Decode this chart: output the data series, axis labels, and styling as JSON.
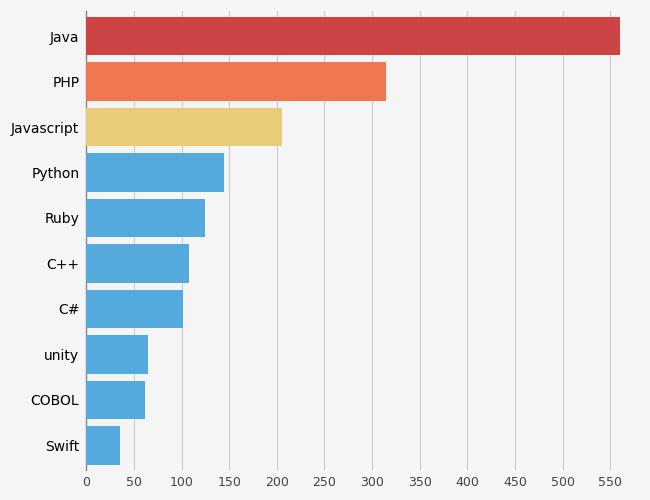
{
  "categories": [
    "Java",
    "PHP",
    "Javascript",
    "Python",
    "Ruby",
    "C++",
    "C#",
    "unity",
    "COBOL",
    "Swift"
  ],
  "values": [
    560,
    315,
    205,
    145,
    125,
    108,
    102,
    65,
    62,
    35
  ],
  "colors": [
    "#cc4444",
    "#f07850",
    "#e8cc77",
    "#55aadd",
    "#55aadd",
    "#55aadd",
    "#55aadd",
    "#55aadd",
    "#55aadd",
    "#55aadd"
  ],
  "xlim": [
    0,
    580
  ],
  "xticks": [
    0,
    50,
    100,
    150,
    200,
    250,
    300,
    350,
    400,
    450,
    500,
    550
  ],
  "background_color": "#f5f5f5",
  "bar_height": 0.85,
  "grid_color": "#cccccc",
  "label_fontsize": 11,
  "tick_fontsize": 9
}
